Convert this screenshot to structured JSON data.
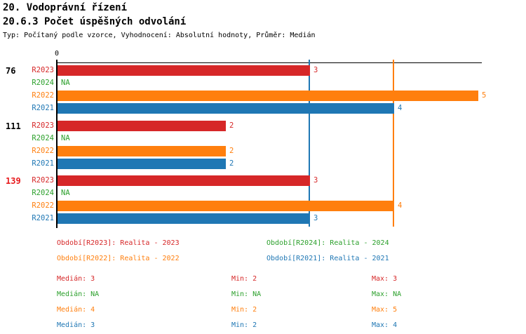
{
  "header": {
    "title1": "20. Vodoprávní řízení",
    "title2": "20.6.3 Počet úspěšných odvolání",
    "subtitle": "Typ: Počítaný podle vzorce, Vyhodnocení: Absolutní hodnoty, Průměr: Medián"
  },
  "chart_data": {
    "type": "bar",
    "orientation": "horizontal",
    "x_axis": {
      "min": 0,
      "max": 5,
      "tick_values": [
        0
      ],
      "tick_labels": [
        "0"
      ]
    },
    "series_order": [
      "R2023",
      "R2024",
      "R2022",
      "R2021"
    ],
    "series_colors": {
      "R2023": "#d62728",
      "R2024": "#2ca02c",
      "R2022": "#ff7f0e",
      "R2021": "#1f77b4"
    },
    "groups": [
      {
        "label": "76",
        "label_color": "#000000",
        "bars": [
          {
            "series": "R2023",
            "value": 3,
            "display": "3"
          },
          {
            "series": "R2024",
            "value": null,
            "display": "NA"
          },
          {
            "series": "R2022",
            "value": 5,
            "display": "5"
          },
          {
            "series": "R2021",
            "value": 4,
            "display": "4"
          }
        ]
      },
      {
        "label": "111",
        "label_color": "#000000",
        "bars": [
          {
            "series": "R2023",
            "value": 2,
            "display": "2"
          },
          {
            "series": "R2024",
            "value": null,
            "display": "NA"
          },
          {
            "series": "R2022",
            "value": 2,
            "display": "2"
          },
          {
            "series": "R2021",
            "value": 2,
            "display": "2"
          }
        ]
      },
      {
        "label": "139",
        "label_color": "#e8191c",
        "bars": [
          {
            "series": "R2023",
            "value": 3,
            "display": "3"
          },
          {
            "series": "R2024",
            "value": null,
            "display": "NA"
          },
          {
            "series": "R2022",
            "value": 4,
            "display": "4"
          },
          {
            "series": "R2021",
            "value": 3,
            "display": "3"
          }
        ]
      }
    ],
    "reference_lines": [
      {
        "value": 3,
        "color": "#1f77b4"
      },
      {
        "value": 4,
        "color": "#ff7f0e"
      }
    ]
  },
  "legend": [
    {
      "label": "Období[R2023]: Realita - 2023",
      "color": "#d62728"
    },
    {
      "label": "Období[R2024]: Realita - 2024",
      "color": "#2ca02c"
    },
    {
      "label": "Období[R2022]: Realita - 2022",
      "color": "#ff7f0e"
    },
    {
      "label": "Období[R2021]: Realita - 2021",
      "color": "#1f77b4"
    }
  ],
  "stats": [
    {
      "median": "Medián: 3",
      "min": "Min: 2",
      "max": "Max: 3",
      "color": "#d62728"
    },
    {
      "median": "Medián: NA",
      "min": "Min: NA",
      "max": "Max: NA",
      "color": "#2ca02c"
    },
    {
      "median": "Medián: 4",
      "min": "Min: 2",
      "max": "Max: 5",
      "color": "#ff7f0e"
    },
    {
      "median": "Medián: 3",
      "min": "Min: 2",
      "max": "Max: 4",
      "color": "#1f77b4"
    }
  ]
}
